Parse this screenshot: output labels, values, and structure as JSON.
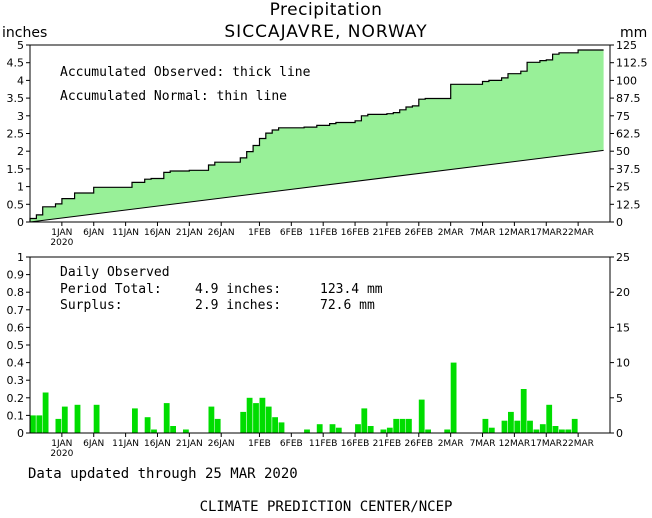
{
  "header": {
    "title": "Precipitation",
    "subtitle": "SICCAJAVRE, NORWAY",
    "unit_left": "inches",
    "unit_right": "mm"
  },
  "footer": {
    "updated": "Data updated through 25 MAR 2020",
    "credit": "CLIMATE PREDICTION CENTER/NCEP"
  },
  "colors": {
    "observed_fill": "#98f098",
    "bar": "#00dd00",
    "line": "#000000",
    "axis": "#000000"
  },
  "chart_data": [
    {
      "type": "area",
      "period_start": "2019-12-27",
      "period_end": "2020-03-25",
      "axis_end": "2020-03-27",
      "annotations": [
        "Accumulated Observed: thick line",
        "Accumulated Normal: thin line"
      ],
      "x_tick_labels": [
        "1JAN",
        "6JAN",
        "11JAN",
        "16JAN",
        "21JAN",
        "26JAN",
        "1FEB",
        "6FEB",
        "11FEB",
        "16FEB",
        "21FEB",
        "26FEB",
        "2MAR",
        "7MAR",
        "12MAR",
        "17MAR",
        "22MAR"
      ],
      "x_tick_dates": [
        "2020-01-01",
        "2020-01-06",
        "2020-01-11",
        "2020-01-16",
        "2020-01-21",
        "2020-01-26",
        "2020-02-01",
        "2020-02-06",
        "2020-02-11",
        "2020-02-16",
        "2020-02-21",
        "2020-02-26",
        "2020-03-02",
        "2020-03-07",
        "2020-03-12",
        "2020-03-17",
        "2020-03-22"
      ],
      "x_year_label": "2020",
      "ylim": [
        0,
        5
      ],
      "y_ticks": [
        "0",
        "0.5",
        "1",
        "1.5",
        "2",
        "2.5",
        "3",
        "3.5",
        "4",
        "4.5",
        "5"
      ],
      "y2_ticks": [
        "0",
        "12.5",
        "25",
        "37.5",
        "50",
        "62.5",
        "75",
        "87.5",
        "100",
        "112.5",
        "125"
      ],
      "series": [
        {
          "name": "Accumulated Observed",
          "x": [
            "2019-12-27",
            "2019-12-28",
            "2019-12-29",
            "2019-12-30",
            "2019-12-31",
            "2020-01-01",
            "2020-01-02",
            "2020-01-03",
            "2020-01-04",
            "2020-01-05",
            "2020-01-06",
            "2020-01-07",
            "2020-01-08",
            "2020-01-09",
            "2020-01-10",
            "2020-01-11",
            "2020-01-12",
            "2020-01-13",
            "2020-01-14",
            "2020-01-15",
            "2020-01-16",
            "2020-01-17",
            "2020-01-18",
            "2020-01-19",
            "2020-01-20",
            "2020-01-21",
            "2020-01-22",
            "2020-01-23",
            "2020-01-24",
            "2020-01-25",
            "2020-01-26",
            "2020-01-27",
            "2020-01-28",
            "2020-01-29",
            "2020-01-30",
            "2020-01-31",
            "2020-02-01",
            "2020-02-02",
            "2020-02-03",
            "2020-02-04",
            "2020-02-05",
            "2020-02-06",
            "2020-02-07",
            "2020-02-08",
            "2020-02-09",
            "2020-02-10",
            "2020-02-11",
            "2020-02-12",
            "2020-02-13",
            "2020-02-14",
            "2020-02-15",
            "2020-02-16",
            "2020-02-17",
            "2020-02-18",
            "2020-02-19",
            "2020-02-20",
            "2020-02-21",
            "2020-02-22",
            "2020-02-23",
            "2020-02-24",
            "2020-02-25",
            "2020-02-26",
            "2020-02-27",
            "2020-02-28",
            "2020-02-29",
            "2020-03-01",
            "2020-03-02",
            "2020-03-03",
            "2020-03-04",
            "2020-03-05",
            "2020-03-06",
            "2020-03-07",
            "2020-03-08",
            "2020-03-09",
            "2020-03-10",
            "2020-03-11",
            "2020-03-12",
            "2020-03-13",
            "2020-03-14",
            "2020-03-15",
            "2020-03-16",
            "2020-03-17",
            "2020-03-18",
            "2020-03-19",
            "2020-03-20",
            "2020-03-21",
            "2020-03-22",
            "2020-03-23",
            "2020-03-24",
            "2020-03-25"
          ],
          "y": [
            0.1,
            0.2,
            0.43,
            0.43,
            0.51,
            0.66,
            0.66,
            0.82,
            0.82,
            0.82,
            0.98,
            0.98,
            0.98,
            0.98,
            0.98,
            0.98,
            1.12,
            1.12,
            1.21,
            1.23,
            1.23,
            1.4,
            1.44,
            1.44,
            1.44,
            1.46,
            1.46,
            1.46,
            1.61,
            1.69,
            1.69,
            1.69,
            1.69,
            1.81,
            1.99,
            2.16,
            2.36,
            2.51,
            2.6,
            2.66,
            2.66,
            2.66,
            2.66,
            2.68,
            2.68,
            2.73,
            2.73,
            2.78,
            2.81,
            2.81,
            2.81,
            2.86,
            3.0,
            3.04,
            3.04,
            3.04,
            3.06,
            3.09,
            3.17,
            3.25,
            3.28,
            3.47,
            3.49,
            3.49,
            3.49,
            3.49,
            3.89,
            3.89,
            3.89,
            3.89,
            3.89,
            3.97,
            4.0,
            4.0,
            4.07,
            4.19,
            4.19,
            4.26,
            4.51,
            4.51,
            4.56,
            4.58,
            4.74,
            4.78,
            4.78,
            4.78,
            4.86,
            4.86,
            4.86,
            4.86
          ]
        },
        {
          "name": "Accumulated Normal",
          "x": [
            "2019-12-27",
            "2020-03-25"
          ],
          "y": [
            0.0,
            2.0
          ]
        }
      ]
    },
    {
      "type": "bar",
      "annotations": [
        "Daily Observed"
      ],
      "period_total_label": "Period Total:",
      "period_total_in": "4.9 inches:",
      "period_total_mm": "123.4 mm",
      "surplus_label": "Surplus:",
      "surplus_in": "2.9 inches:",
      "surplus_mm": "72.6 mm",
      "ylim": [
        0,
        1
      ],
      "y_ticks": [
        "0",
        "0.1",
        "0.2",
        "0.3",
        "0.4",
        "0.5",
        "0.6",
        "0.7",
        "0.8",
        "0.9",
        "1"
      ],
      "y2_ticks": [
        "0",
        "5",
        "10",
        "15",
        "20",
        "25"
      ],
      "series": [
        {
          "name": "Daily Observed",
          "x": [
            "2019-12-27",
            "2019-12-28",
            "2019-12-29",
            "2019-12-31",
            "2020-01-01",
            "2020-01-03",
            "2020-01-06",
            "2020-01-12",
            "2020-01-14",
            "2020-01-15",
            "2020-01-17",
            "2020-01-18",
            "2020-01-20",
            "2020-01-24",
            "2020-01-25",
            "2020-01-29",
            "2020-01-30",
            "2020-01-31",
            "2020-02-01",
            "2020-02-02",
            "2020-02-03",
            "2020-02-04",
            "2020-02-08",
            "2020-02-10",
            "2020-02-12",
            "2020-02-13",
            "2020-02-16",
            "2020-02-17",
            "2020-02-18",
            "2020-02-20",
            "2020-02-21",
            "2020-02-22",
            "2020-02-23",
            "2020-02-24",
            "2020-02-26",
            "2020-02-27",
            "2020-03-01",
            "2020-03-02",
            "2020-03-07",
            "2020-03-08",
            "2020-03-10",
            "2020-03-11",
            "2020-03-12",
            "2020-03-13",
            "2020-03-14",
            "2020-03-15",
            "2020-03-16",
            "2020-03-17",
            "2020-03-18",
            "2020-03-19",
            "2020-03-20",
            "2020-03-21"
          ],
          "y": [
            0.1,
            0.1,
            0.23,
            0.08,
            0.15,
            0.16,
            0.16,
            0.14,
            0.09,
            0.02,
            0.17,
            0.04,
            0.02,
            0.15,
            0.08,
            0.12,
            0.2,
            0.17,
            0.2,
            0.15,
            0.09,
            0.06,
            0.02,
            0.05,
            0.05,
            0.03,
            0.05,
            0.14,
            0.04,
            0.02,
            0.03,
            0.08,
            0.08,
            0.08,
            0.19,
            0.02,
            0.02,
            0.4,
            0.08,
            0.03,
            0.07,
            0.12,
            0.07,
            0.25,
            0.07,
            0.02,
            0.05,
            0.16,
            0.04,
            0.02,
            0.02,
            0.08
          ]
        }
      ]
    }
  ]
}
